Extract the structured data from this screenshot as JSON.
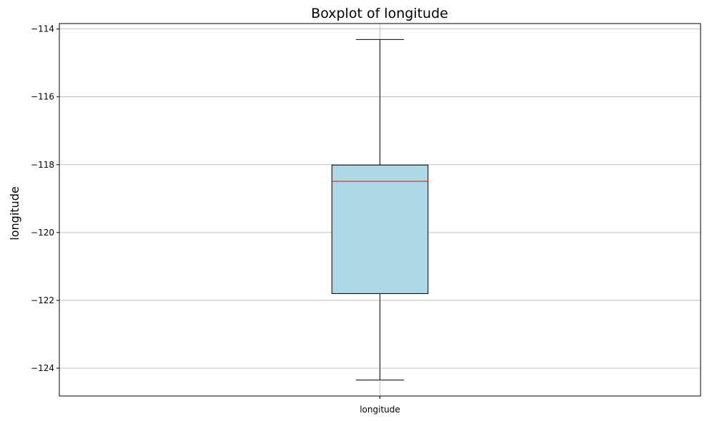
{
  "chart_data": {
    "type": "boxplot",
    "title": "Boxplot of longitude",
    "xlabel": "",
    "ylabel": "longitude",
    "categories": [
      "longitude"
    ],
    "boxes": [
      {
        "category": "longitude",
        "whisker_low": -124.35,
        "q1": -121.8,
        "median": -118.49,
        "q3": -118.01,
        "whisker_high": -114.31
      }
    ],
    "ylim": [
      -124.82,
      -113.84
    ],
    "yticks": [
      -124,
      -122,
      -120,
      -118,
      -116,
      -114
    ],
    "ytick_labels": [
      "−124",
      "−122",
      "−120",
      "−118",
      "−116",
      "−114"
    ],
    "xtick_labels": [
      "longitude"
    ],
    "grid": true,
    "colors": {
      "box_fill": "#add8e6",
      "box_edge": "#000000",
      "median": "#ff0000",
      "grid": "#b0b0b0"
    }
  }
}
